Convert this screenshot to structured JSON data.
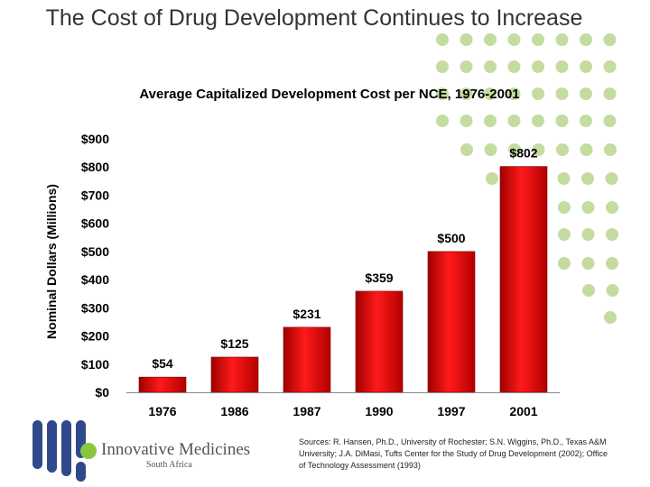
{
  "slide": {
    "title": "The Cost of Drug Development Continues to Increase"
  },
  "chart_data": {
    "type": "bar",
    "title": "Average Capitalized Development Cost per NCE, 1976-2001",
    "ylabel": "Nominal Dollars (Millions)",
    "xlabel": "",
    "categories": [
      "1976",
      "1986",
      "1987",
      "1990",
      "1997",
      "2001"
    ],
    "values": [
      54,
      125,
      231,
      359,
      500,
      802
    ],
    "value_labels": [
      "$54",
      "$125",
      "$231",
      "$359",
      "$500",
      "$802"
    ],
    "ylim": [
      0,
      900
    ],
    "yticks": [
      0,
      100,
      200,
      300,
      400,
      500,
      600,
      700,
      800,
      900
    ],
    "ytick_labels": [
      "$0",
      "$100",
      "$200",
      "$300",
      "$400",
      "$500",
      "$600",
      "$700",
      "$800",
      "$900"
    ],
    "grid": false,
    "bar_color": "#e00000"
  },
  "footer": {
    "logo_name": "Innovative Medicines",
    "logo_sub": "South Africa",
    "sources": "Sources: R. Hansen, Ph.D., University of Rochester; S.N. Wiggins, Ph.D., Texas A&M University; J.A. DiMasi, Tufts Center for the Study of Drug Development (2002); Office of Technology Assessment (1993)"
  },
  "colors": {
    "dots": "#c4dca0",
    "logo_blue": "#2f4a8c",
    "logo_green": "#8cc63f"
  }
}
